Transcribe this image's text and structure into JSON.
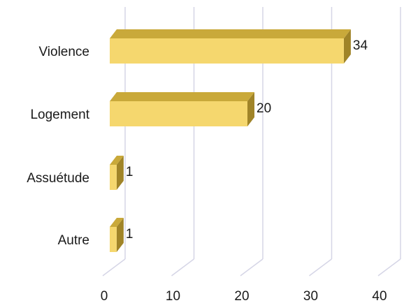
{
  "chart_data": {
    "type": "bar",
    "orientation": "horizontal",
    "style": "3d",
    "title": "",
    "xlabel": "",
    "ylabel": "",
    "categories": [
      "Violence",
      "Logement",
      "Assuétude",
      "Autre"
    ],
    "values": [
      34,
      20,
      1,
      1
    ],
    "data_labels": [
      "34",
      "20",
      "1",
      "1"
    ],
    "x_ticks": [
      "0",
      "10",
      "20",
      "30",
      "40"
    ],
    "xlim": [
      0,
      40
    ],
    "grid": true,
    "legend": "none",
    "colors": {
      "bar_front": "#f5d76e",
      "bar_top": "#c9a93a",
      "bar_side": "#a08428",
      "grid": "#d5d5e6"
    }
  }
}
